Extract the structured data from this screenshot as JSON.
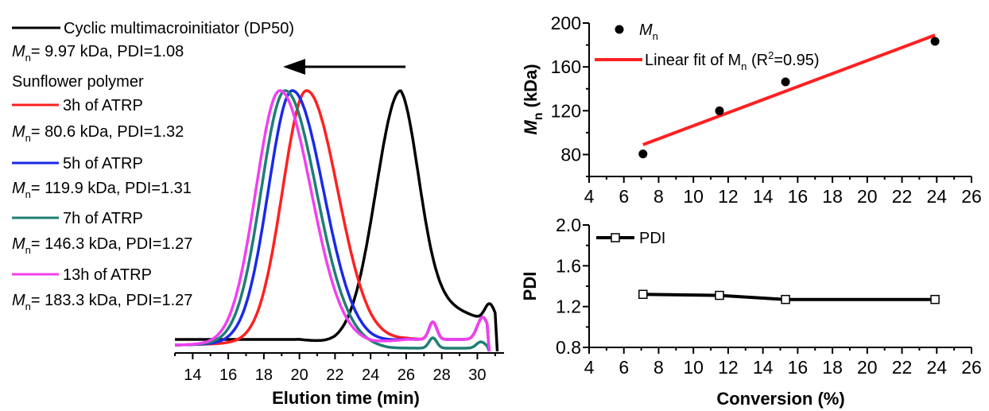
{
  "chart_data": [
    {
      "type": "line",
      "panel": "gpc-traces",
      "xlabel": "Elution time (min)",
      "ylabel": "",
      "xlim": [
        13,
        31.5
      ],
      "xticks": [
        14,
        16,
        18,
        20,
        22,
        24,
        26,
        28,
        30
      ],
      "grid": false,
      "legend": "top-left",
      "heading": "Sunflower polymer",
      "arrow": "points-left",
      "series": [
        {
          "name": "Cyclic multimacroinitiator (DP50)",
          "info_mn": "= 9.97 kDa, PDI=1.08",
          "color": "#000000",
          "shape": {
            "type": "black",
            "peak": 25.7
          }
        },
        {
          "name": "3h of ATRP",
          "info_mn": "= 80.6 kDa, PDI=1.32",
          "color": "#ff2020",
          "shape": {
            "type": "poly",
            "peak": 20.4,
            "ls": 1.35,
            "rs": 1.75,
            "tail": "pink"
          }
        },
        {
          "name": "5h of ATRP",
          "info_mn": "= 119.9 kDa, PDI=1.31",
          "color": "#1a2ae8",
          "shape": {
            "type": "poly",
            "peak": 19.6,
            "ls": 1.35,
            "rs": 1.75,
            "tail": "pink"
          }
        },
        {
          "name": "7h of ATRP",
          "info_mn": "= 146.3 kDa, PDI=1.27",
          "color": "#1f7f74",
          "shape": {
            "type": "poly",
            "peak": 19.2,
            "ls": 1.35,
            "rs": 1.75,
            "tail": "teal"
          }
        },
        {
          "name": "13h of ATRP",
          "info_mn": "= 183.3 kDa, PDI=1.27",
          "color": "#f040f0",
          "shape": {
            "type": "poly",
            "peak": 18.9,
            "ls": 1.35,
            "rs": 1.75,
            "tail": "pink"
          }
        }
      ]
    },
    {
      "type": "scatter",
      "panel": "mn-vs-conversion",
      "xlabel": "",
      "ylabel": "M",
      "ylabel_sub": "n",
      "ylabel_unit": " (kDa)",
      "xlim": [
        4,
        26
      ],
      "ylim": [
        60,
        200
      ],
      "xticks": [
        4,
        6,
        8,
        10,
        12,
        14,
        16,
        18,
        20,
        22,
        24,
        26
      ],
      "yticks": [
        80,
        120,
        160,
        200
      ],
      "grid": false,
      "legend": "top-left",
      "series": [
        {
          "name": "M",
          "name_sub": "n",
          "color": "#000000",
          "marker": "filled-circle",
          "x": [
            7.1,
            11.5,
            15.3,
            23.9
          ],
          "y": [
            80.6,
            119.9,
            146.3,
            183.3
          ]
        },
        {
          "name": "Linear fit of M",
          "name_sub": "n",
          "name_tail": " (R",
          "name_sup": "2",
          "name_end": "=0.95)",
          "color": "#ff2020",
          "marker": "line",
          "x": [
            7.1,
            23.9
          ],
          "y": [
            89,
            189
          ]
        }
      ]
    },
    {
      "type": "line",
      "panel": "pdi-vs-conversion",
      "xlabel": "Conversion (%)",
      "ylabel": "PDI",
      "xlim": [
        4,
        26
      ],
      "ylim": [
        0.8,
        2.0
      ],
      "xticks": [
        4,
        6,
        8,
        10,
        12,
        14,
        16,
        18,
        20,
        22,
        24,
        26
      ],
      "yticks": [
        "0.8",
        "1.2",
        "1.6",
        "2.0"
      ],
      "grid": false,
      "legend": "top-left",
      "series": [
        {
          "name": "PDI",
          "color": "#000000",
          "marker": "open-square",
          "x": [
            7.1,
            11.5,
            15.3,
            23.9
          ],
          "y": [
            1.32,
            1.31,
            1.27,
            1.27
          ]
        }
      ]
    }
  ]
}
